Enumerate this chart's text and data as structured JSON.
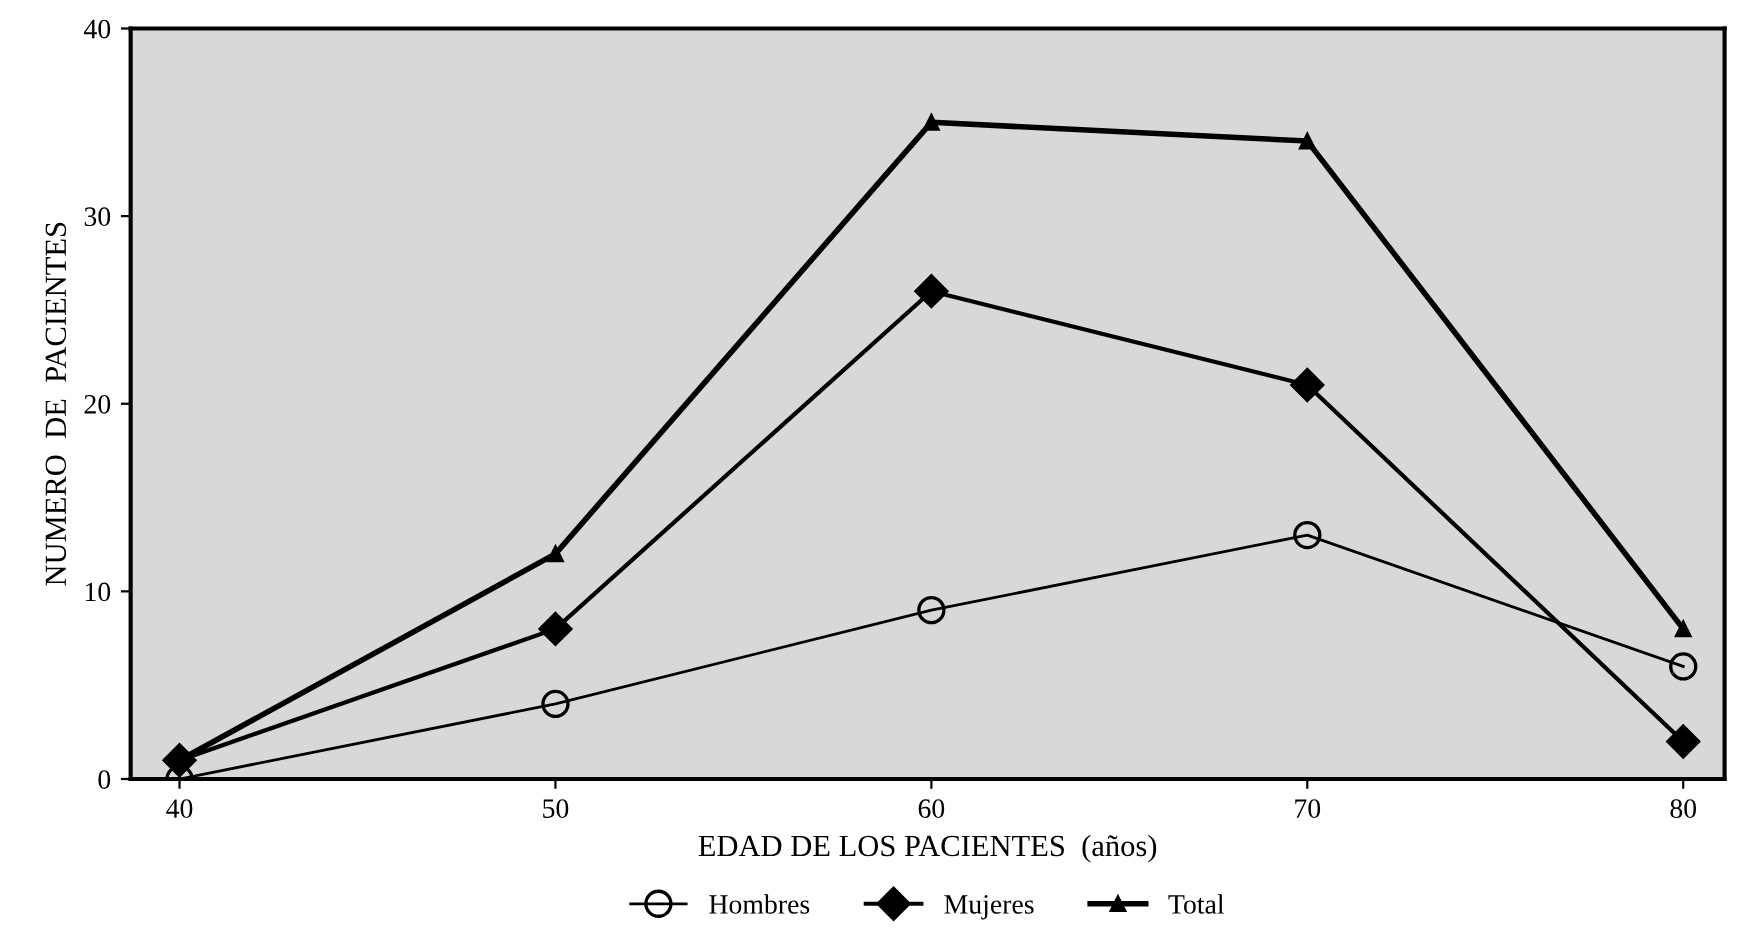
{
  "chart_data": {
    "type": "line",
    "xlabel": "EDAD DE LOS PACIENTES  (años)",
    "ylabel": "NUMERO  DE  PACIENTES",
    "x": [
      40,
      50,
      60,
      70,
      80
    ],
    "series": [
      {
        "name": "Hombres",
        "color": "#000000",
        "marker": "circle",
        "values": [
          0,
          4,
          9,
          13,
          6
        ]
      },
      {
        "name": "Mujeres",
        "color": "#000000",
        "marker": "diamond",
        "values": [
          1,
          8,
          26,
          21,
          2
        ]
      },
      {
        "name": "Total",
        "color": "#000000",
        "marker": "triangle",
        "values": [
          1,
          12,
          35,
          34,
          8
        ]
      }
    ],
    "xlim": [
      38.7,
      81.1
    ],
    "ylim": [
      0,
      40
    ],
    "xticks": [
      40,
      50,
      60,
      70,
      80
    ],
    "yticks": [
      0,
      10,
      20,
      30,
      40
    ],
    "grid": false,
    "legend": "bottom",
    "line_style": "solid"
  }
}
